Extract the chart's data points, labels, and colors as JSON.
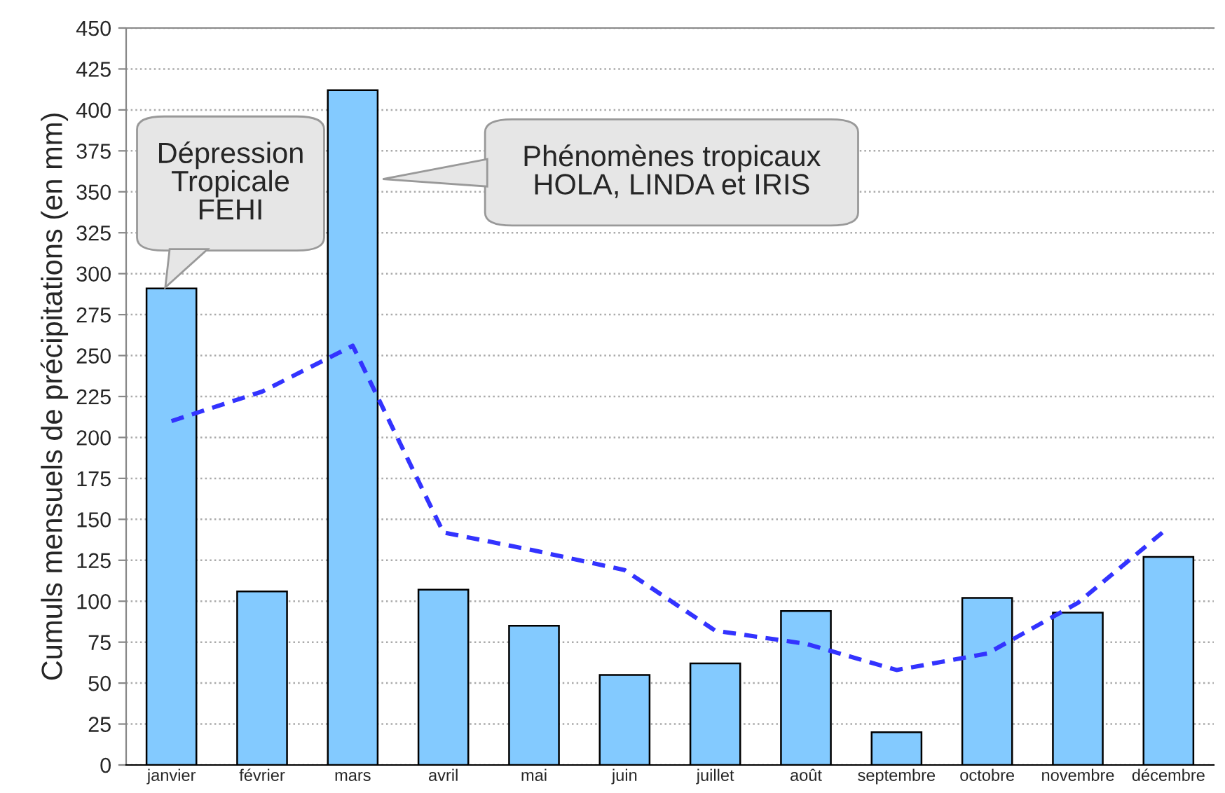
{
  "chart_data": {
    "type": "bar",
    "ylabel": "Cumuls mensuels de précipitations (en mm)",
    "categories": [
      "janvier",
      "février",
      "mars",
      "avril",
      "mai",
      "juin",
      "juillet",
      "août",
      "septembre",
      "octobre",
      "novembre",
      "décembre"
    ],
    "series": [
      {
        "color": "#83caff",
        "values": [
          291,
          106,
          412,
          107,
          85,
          55,
          62,
          94,
          20,
          102,
          93,
          127
        ]
      },
      {
        "type": "line",
        "color": "#3333ff",
        "line_style": "dashed",
        "values": [
          210,
          228,
          256,
          142,
          131,
          119,
          82,
          74,
          58,
          68,
          99,
          145
        ]
      }
    ],
    "ylim": [
      0,
      450
    ],
    "yticks": [
      0,
      25,
      50,
      75,
      100,
      125,
      150,
      175,
      200,
      225,
      250,
      275,
      300,
      325,
      350,
      375,
      400,
      425,
      450
    ],
    "grid": "y",
    "legend": false,
    "annotations": [
      "Dépression\nTropicale\nFEHI",
      "Phénomènes tropicaux\nHOLA, LINDA et IRIS"
    ]
  }
}
